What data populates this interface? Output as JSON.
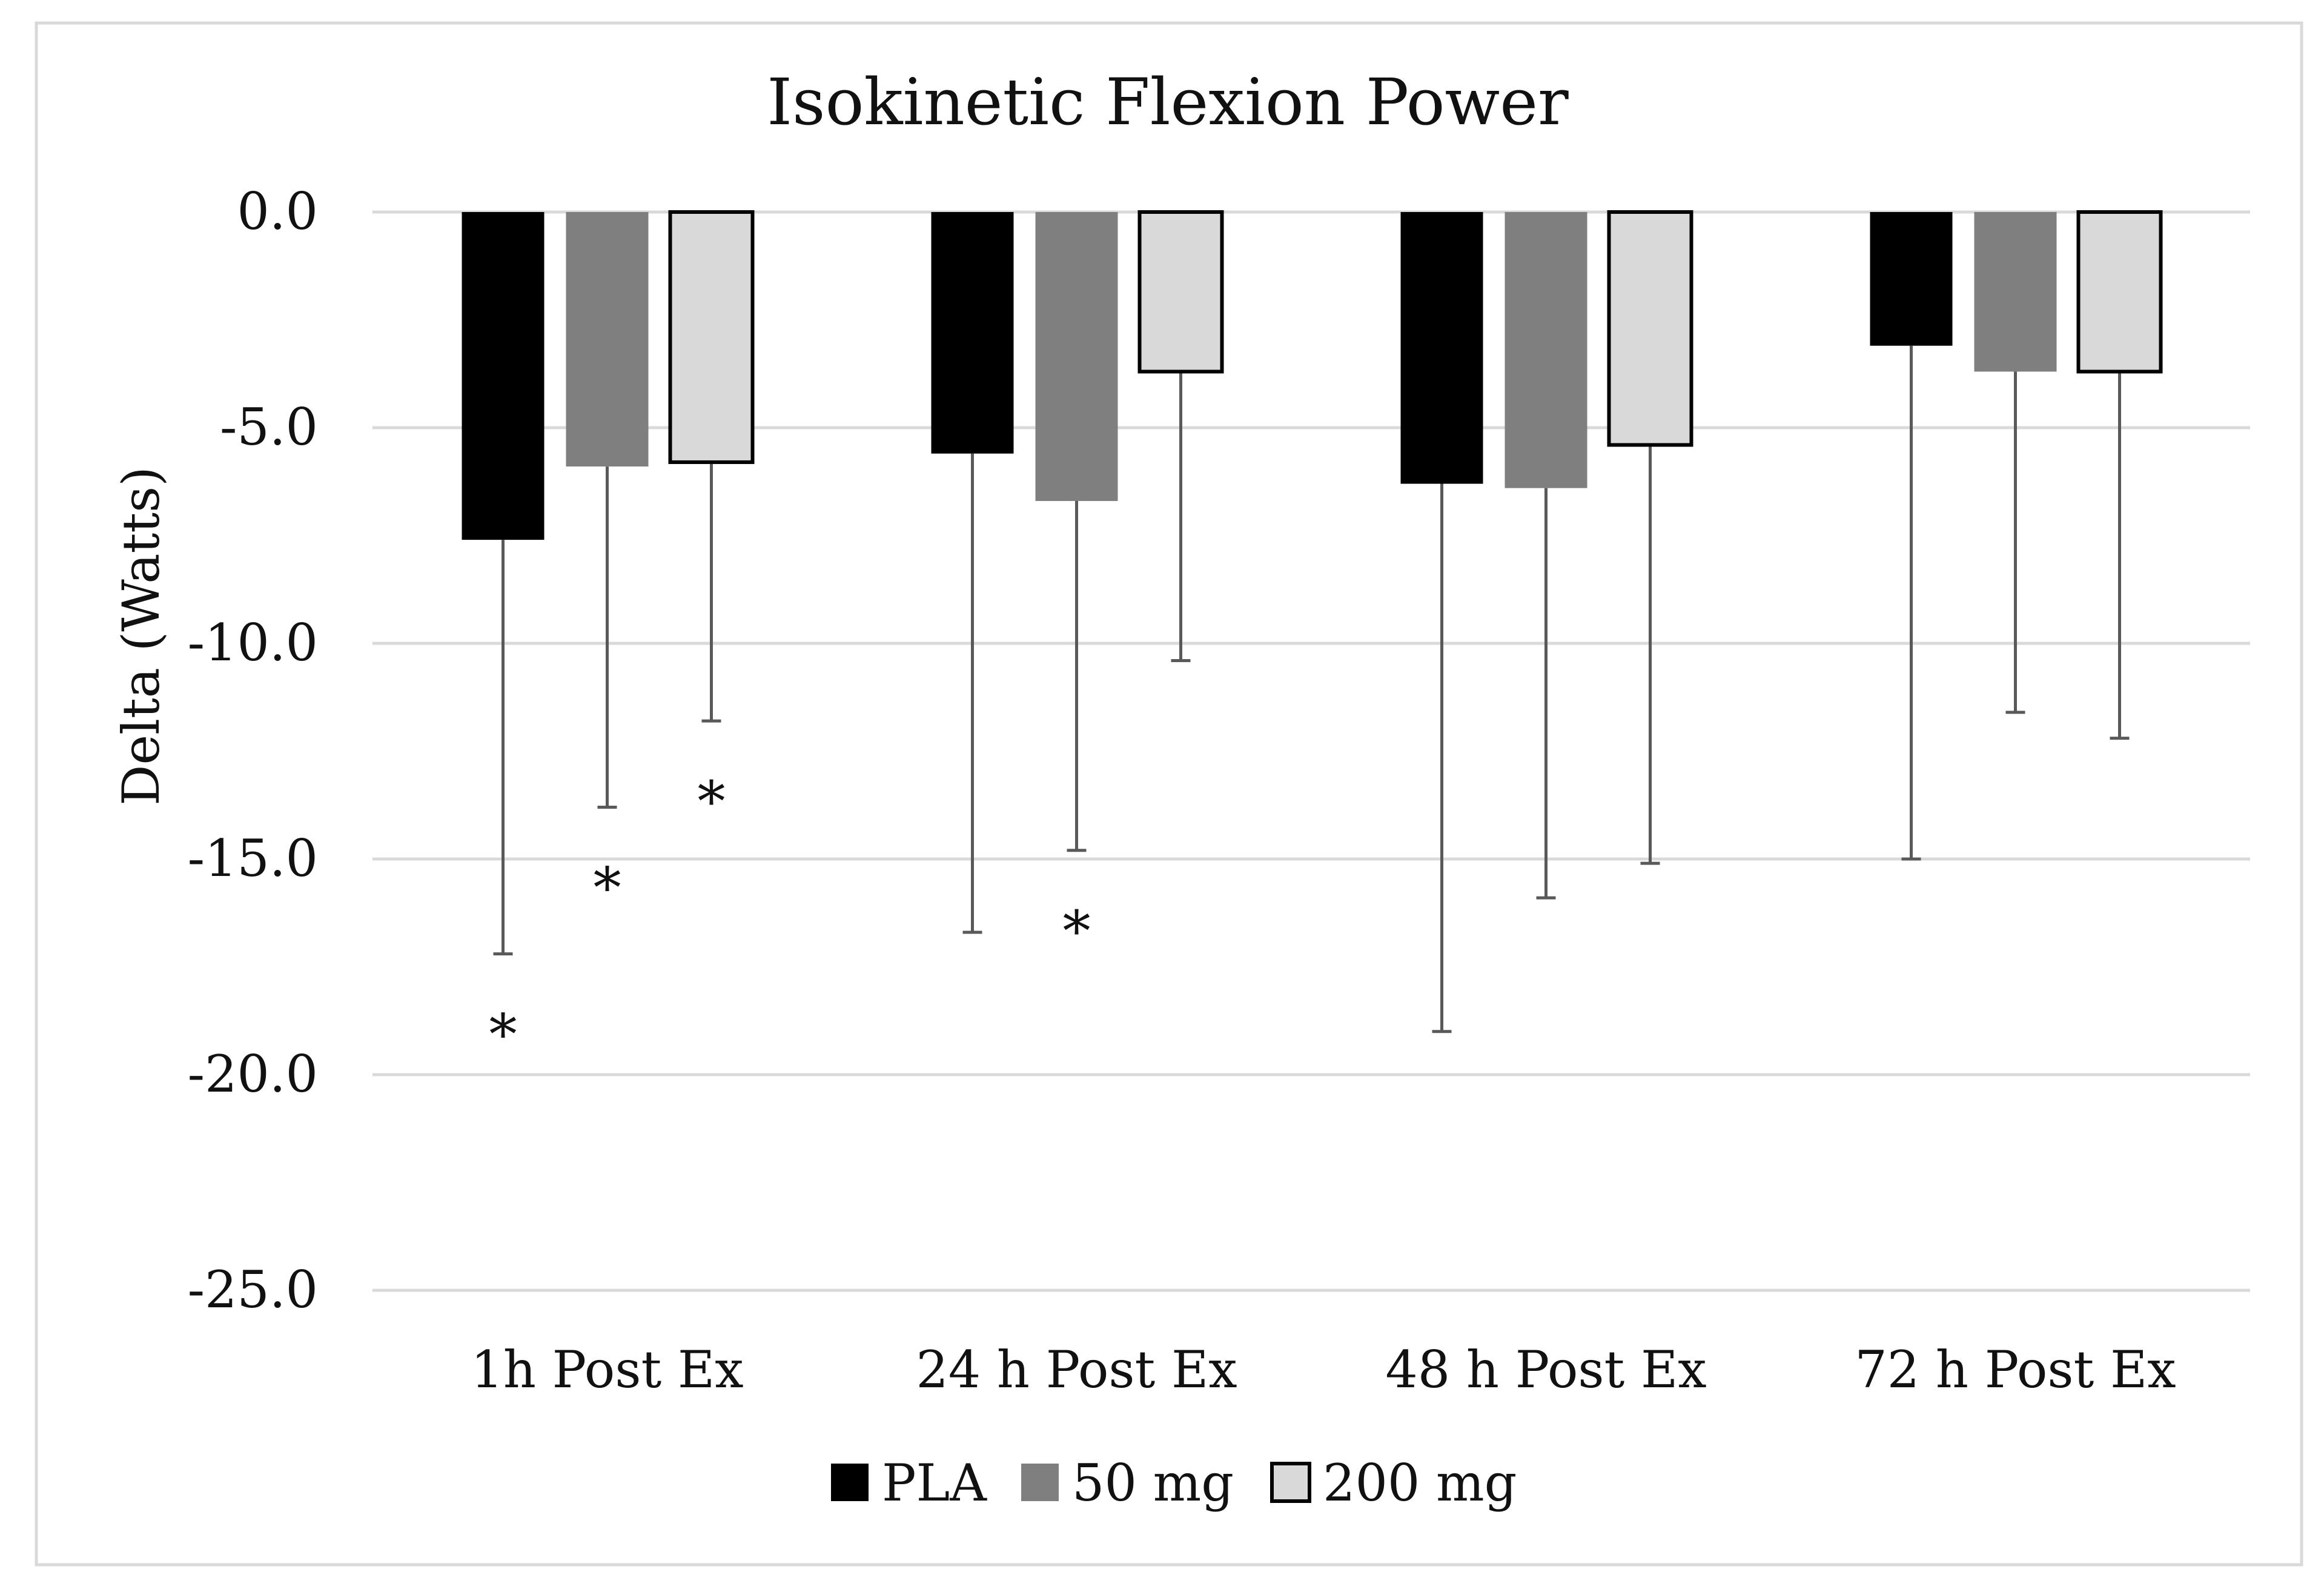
{
  "chart_data": {
    "type": "bar",
    "title": "Isokinetic Flexion Power",
    "xlabel": "",
    "ylabel": "Delta (Watts)",
    "ylim": [
      -25,
      0
    ],
    "yticks": [
      0,
      -5,
      -10,
      -15,
      -20,
      -25
    ],
    "ytick_labels": [
      "0.0",
      "-5.0",
      "-10.0",
      "-15.0",
      "-20.0",
      "-25.0"
    ],
    "grid": true,
    "legend_position": "bottom",
    "categories": [
      "1h Post Ex",
      "24 h Post Ex",
      "48 h Post Ex",
      "72 h Post Ex"
    ],
    "series": [
      {
        "name": "PLA",
        "color": "#000000",
        "values": [
          -7.6,
          -5.6,
          -6.3,
          -3.1
        ],
        "error_low": [
          -17.2,
          -16.7,
          -19.0,
          -15.0
        ],
        "significant": [
          true,
          false,
          false,
          false
        ]
      },
      {
        "name": "50 mg",
        "color": "#7f7f7f",
        "values": [
          -5.9,
          -6.7,
          -6.4,
          -3.7
        ],
        "error_low": [
          -13.8,
          -14.8,
          -15.9,
          -11.6
        ],
        "significant": [
          true,
          true,
          false,
          false
        ]
      },
      {
        "name": "200 mg",
        "color": "#d9d9d9",
        "values": [
          -5.8,
          -3.7,
          -5.4,
          -3.7
        ],
        "error_low": [
          -11.8,
          -10.4,
          -15.1,
          -12.2
        ],
        "significant": [
          true,
          false,
          false,
          false
        ]
      }
    ],
    "annotation_symbol": "*"
  }
}
